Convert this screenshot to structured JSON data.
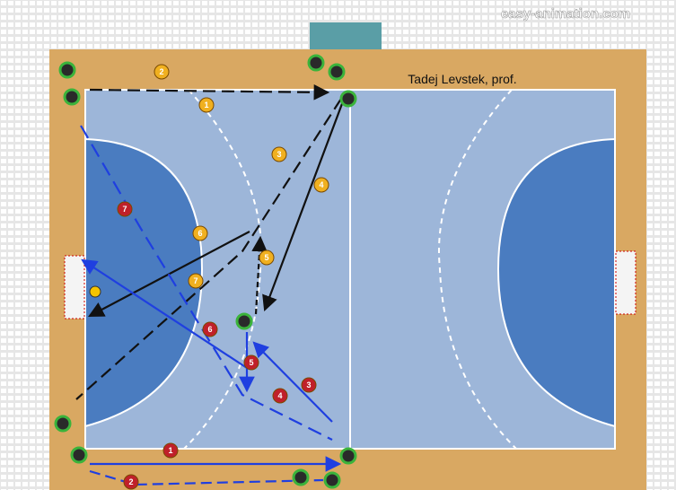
{
  "watermark": "easy-animation.com",
  "author": "Tadej Levstek, prof.",
  "yellow_players": [
    {
      "label": "2"
    },
    {
      "label": "1"
    },
    {
      "label": "3"
    },
    {
      "label": "4"
    },
    {
      "label": "6"
    },
    {
      "label": "5"
    },
    {
      "label": "7"
    }
  ],
  "red_players": [
    {
      "label": "7"
    },
    {
      "label": "6"
    },
    {
      "label": "5"
    },
    {
      "label": "3"
    },
    {
      "label": "4"
    },
    {
      "label": "1"
    },
    {
      "label": "2"
    }
  ]
}
